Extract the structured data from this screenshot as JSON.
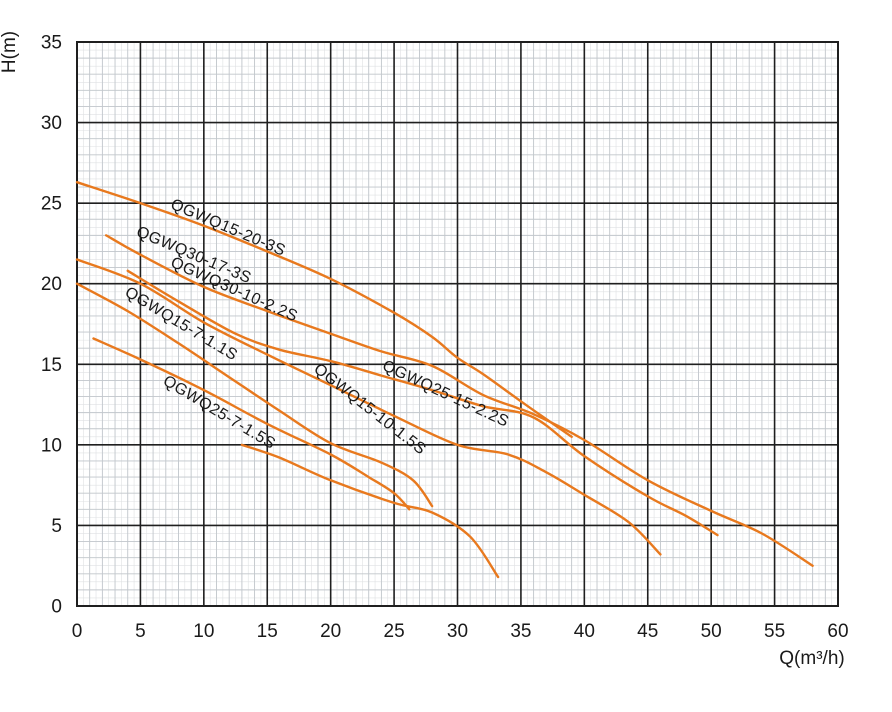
{
  "chart_data": {
    "type": "line",
    "title": "",
    "xlabel": "Q(m³/h)",
    "ylabel": "H(m)",
    "xlim": [
      0,
      60
    ],
    "ylim": [
      0,
      35
    ],
    "x_ticks": [
      0,
      5,
      10,
      15,
      20,
      25,
      30,
      35,
      40,
      45,
      50,
      55,
      60
    ],
    "y_ticks": [
      0,
      5,
      10,
      15,
      20,
      25,
      30,
      35
    ],
    "grid": {
      "major_step": 5,
      "minor_step": 1,
      "subminor_step": 0.5,
      "major_color": "#1f1f1f",
      "minor_color": "#c2c7cc",
      "subminor_color": "#dfe1e3"
    },
    "curve_color": "#E8791E",
    "label_color": "#3a3a3a",
    "legend": "none",
    "series": [
      {
        "name": "QGWQ15-20-3S",
        "points": [
          [
            0,
            26.3
          ],
          [
            5,
            25.0
          ],
          [
            10,
            23.6
          ],
          [
            15,
            22.0
          ],
          [
            20,
            20.3
          ],
          [
            25,
            18.2
          ],
          [
            28,
            16.7
          ],
          [
            30,
            15.4
          ],
          [
            32,
            14.4
          ],
          [
            35,
            12.7
          ],
          [
            37,
            11.6
          ],
          [
            39,
            10.5
          ]
        ],
        "label": {
          "text": "QGWQ15-20-3S",
          "anchor": [
            7.3,
            24.7
          ],
          "rotation": 23
        }
      },
      {
        "name": "QGWQ30-17-3S",
        "points": [
          [
            2.3,
            23.0
          ],
          [
            5,
            21.8
          ],
          [
            10,
            19.8
          ],
          [
            15,
            18.3
          ],
          [
            20,
            16.9
          ],
          [
            24,
            15.8
          ],
          [
            28,
            14.9
          ],
          [
            32,
            13.1
          ],
          [
            36,
            11.9
          ],
          [
            40,
            10.3
          ],
          [
            45,
            7.8
          ],
          [
            50,
            5.9
          ],
          [
            54,
            4.5
          ],
          [
            58,
            2.5
          ]
        ],
        "label": {
          "text": "QGWQ30-17-3S",
          "anchor": [
            4.6,
            23.0
          ],
          "rotation": 23
        }
      },
      {
        "name": "QGWQ30-10-2.2S",
        "points": [
          [
            0,
            21.5
          ],
          [
            5,
            20.0
          ],
          [
            10,
            17.6
          ],
          [
            15,
            15.6
          ],
          [
            20,
            13.7
          ],
          [
            25,
            11.8
          ],
          [
            30,
            10.0
          ],
          [
            34,
            9.4
          ],
          [
            37,
            8.3
          ],
          [
            40,
            6.9
          ],
          [
            43.5,
            5.2
          ],
          [
            46,
            3.2
          ]
        ],
        "label": {
          "text": "QGWQ30-10-2.2S",
          "anchor": [
            7.3,
            21.1
          ],
          "rotation": 24
        }
      },
      {
        "name": "QGWQ15-7-1.1S",
        "points": [
          [
            0,
            20.0
          ],
          [
            4,
            18.3
          ],
          [
            8,
            16.3
          ],
          [
            12,
            14.2
          ],
          [
            16,
            12.1
          ],
          [
            20,
            10.1
          ],
          [
            24,
            8.9
          ],
          [
            26.5,
            7.8
          ],
          [
            28,
            6.2
          ]
        ],
        "label": {
          "text": "QGWQ15-7-1.1S",
          "anchor": [
            3.7,
            19.3
          ],
          "rotation": 31
        }
      },
      {
        "name": "QGWQ25-15-2.2S",
        "points": [
          [
            4,
            20.8
          ],
          [
            8,
            18.9
          ],
          [
            12.5,
            16.9
          ],
          [
            16,
            15.9
          ],
          [
            20,
            15.2
          ],
          [
            24,
            14.3
          ],
          [
            28,
            13.4
          ],
          [
            32,
            12.4
          ],
          [
            36,
            11.7
          ],
          [
            40,
            9.3
          ],
          [
            45,
            6.8
          ],
          [
            48,
            5.6
          ],
          [
            50.5,
            4.4
          ]
        ],
        "label": {
          "text": "QGWQ25-15-2.2S",
          "anchor": [
            24.0,
            14.7
          ],
          "rotation": 25
        }
      },
      {
        "name": "QGWQ15-10-1.5S",
        "points": [
          [
            1.3,
            16.6
          ],
          [
            5,
            15.3
          ],
          [
            10,
            13.4
          ],
          [
            15,
            11.3
          ],
          [
            20,
            9.4
          ],
          [
            23,
            8.0
          ],
          [
            25,
            7.0
          ],
          [
            26.2,
            6.0
          ]
        ],
        "label": {
          "text": "QGWQ15-10-1.5S",
          "anchor": [
            18.6,
            14.6
          ],
          "rotation": 38
        }
      },
      {
        "name": "QGWQ25-7-1.5S",
        "points": [
          [
            13,
            10.0
          ],
          [
            16,
            9.2
          ],
          [
            20,
            7.8
          ],
          [
            25,
            6.4
          ],
          [
            28,
            5.8
          ],
          [
            31,
            4.3
          ],
          [
            33.2,
            1.8
          ]
        ],
        "label": {
          "text": "QGWQ25-7-1.5S",
          "anchor": [
            6.7,
            13.8
          ],
          "rotation": 31
        }
      }
    ]
  }
}
